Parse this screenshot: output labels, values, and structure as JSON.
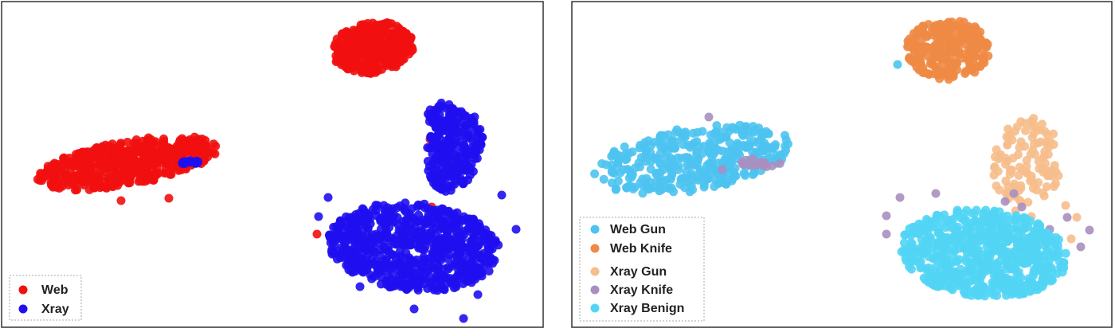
{
  "chart_data": [
    {
      "type": "scatter",
      "grid": false,
      "legend_position": "bottom-left",
      "series": [
        {
          "name": "Web",
          "color": "#f20f0f",
          "clusters": [
            {
              "kind": "ellipse",
              "cx": 160,
              "cy": 205,
              "rx": 115,
              "ry": 28,
              "tilt": -10,
              "n": 500
            },
            {
              "kind": "ellipse",
              "cx": 468,
              "cy": 60,
              "rx": 52,
              "ry": 32,
              "tilt": -8,
              "n": 380
            }
          ],
          "points": [
            [
              398,
              294
            ],
            [
              542,
              260
            ],
            [
              540,
              175
            ],
            [
              152,
              252
            ],
            [
              212,
              249
            ]
          ]
        },
        {
          "name": "Xray",
          "color": "#1f0ff0",
          "clusters": [
            {
              "kind": "ellipse",
              "cx": 520,
              "cy": 310,
              "rx": 108,
              "ry": 55,
              "tilt": 5,
              "n": 700
            },
            {
              "kind": "ellipse",
              "cx": 570,
              "cy": 190,
              "rx": 34,
              "ry": 52,
              "tilt": 18,
              "n": 220
            },
            {
              "kind": "ellipse",
              "cx": 555,
              "cy": 145,
              "rx": 18,
              "ry": 16,
              "tilt": 0,
              "n": 40
            },
            {
              "kind": "ellipse",
              "cx": 238,
              "cy": 203,
              "rx": 14,
              "ry": 3,
              "tilt": 0,
              "n": 14
            }
          ],
          "points": [
            [
              400,
              272
            ],
            [
              412,
              248
            ],
            [
              630,
              245
            ],
            [
              648,
              288
            ],
            [
              452,
              360
            ],
            [
              600,
              370
            ],
            [
              582,
              400
            ],
            [
              520,
              388
            ]
          ]
        }
      ]
    },
    {
      "type": "scatter",
      "grid": false,
      "legend_position": "bottom-left",
      "series": [
        {
          "name": "Web Gun",
          "color": "#4dc3f0",
          "clusters": [
            {
              "kind": "ellipse",
              "cx": 870,
              "cy": 200,
              "rx": 125,
              "ry": 40,
              "tilt": -9,
              "n": 360
            }
          ],
          "points": [
            [
              1127,
              81
            ]
          ]
        },
        {
          "name": "Web Knife",
          "color": "#ee8a45",
          "clusters": [
            {
              "kind": "ellipse",
              "cx": 1190,
              "cy": 62,
              "rx": 52,
              "ry": 38,
              "tilt": 0,
              "n": 260
            }
          ],
          "points": []
        },
        {
          "name": "Xray Gun",
          "color": "#f6be8c",
          "clusters": [
            {
              "kind": "ellipse",
              "cx": 1290,
              "cy": 205,
              "rx": 42,
              "ry": 58,
              "tilt": 10,
              "n": 110
            }
          ],
          "points": [
            [
              1248,
              220
            ],
            [
              1275,
              265
            ],
            [
              1295,
              272
            ],
            [
              1338,
              258
            ],
            [
              1345,
              300
            ],
            [
              1205,
              357
            ],
            [
              1352,
              273
            ]
          ]
        },
        {
          "name": "Xray Knife",
          "color": "#a88fc0",
          "clusters": [
            {
              "kind": "ellipse",
              "cx": 955,
              "cy": 205,
              "rx": 25,
              "ry": 6,
              "tilt": 0,
              "n": 16
            }
          ],
          "points": [
            [
              1113,
              271
            ],
            [
              1130,
              248
            ],
            [
              1113,
              294
            ],
            [
              1175,
              243
            ],
            [
              1273,
              243
            ],
            [
              1318,
              288
            ],
            [
              1340,
              273
            ],
            [
              1368,
              289
            ],
            [
              1357,
              310
            ],
            [
              1245,
              270
            ],
            [
              1283,
              260
            ],
            [
              1262,
              253
            ],
            [
              907,
              213
            ],
            [
              890,
              147
            ]
          ]
        },
        {
          "name": "Xray Benign",
          "color": "#52d5f5",
          "clusters": [
            {
              "kind": "ellipse",
              "cx": 1235,
              "cy": 318,
              "rx": 105,
              "ry": 55,
              "tilt": 5,
              "n": 650
            }
          ],
          "points": []
        }
      ]
    }
  ]
}
